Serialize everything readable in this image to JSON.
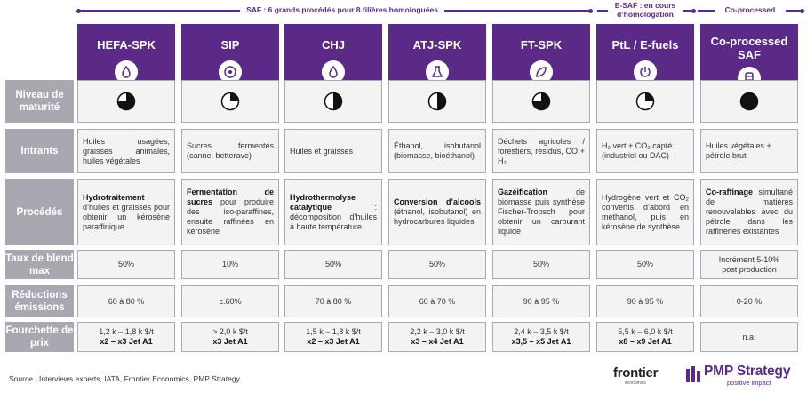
{
  "sections": {
    "saf": "SAF : 6 grands procédés pour 8 filières homologuées",
    "esaf": "E-SAF : en cours d’homologation",
    "coprocessed": "Co-processed"
  },
  "columns": [
    {
      "title": "HEFA-SPK",
      "icon": "oil-drop-icon"
    },
    {
      "title": "SIP",
      "icon": "sugar-icon"
    },
    {
      "title": "CHJ",
      "icon": "oil-drop-icon"
    },
    {
      "title": "ATJ-SPK",
      "icon": "beaker-icon"
    },
    {
      "title": "FT-SPK",
      "icon": "leaf-icon"
    },
    {
      "title": "PtL / E-fuels",
      "icon": "power-icon"
    },
    {
      "title": "Co-processed SAF",
      "icon": "barrel-icon"
    }
  ],
  "rows": {
    "maturite": "Niveau de maturité",
    "intrants": "Intrants",
    "procedes": "Procédés",
    "blend": "Taux de blend max",
    "reductions": "Réductions émissions",
    "prix": "Fourchette de prix"
  },
  "maturity": [
    0.75,
    0.25,
    0.5,
    0.5,
    0.75,
    0.25,
    1.0
  ],
  "intrants": [
    "Huiles usagées, graisses animales, huiles végétales",
    "Sucres fermentés (canne, betterave)",
    "Huiles et graisses",
    "Éthanol, isobutanol (biomasse, bioéthanol)",
    "Déchets agricoles / forestiers, résidus, CO + H₂",
    "H₂ vert + CO₂ capté (industriel ou DAC)",
    "Huiles végétales + pétrole brut"
  ],
  "procedes": [
    {
      "bold": "Hydrotraitement",
      "rest": " d’huiles et graisses pour obtenir un kérosène paraffinique"
    },
    {
      "bold": "Fermentation de sucres",
      "rest": " pour produire des iso-paraffines, ensuite raffinées en kérosène"
    },
    {
      "bold": "Hydrothermolyse catalytique",
      "rest": " : décomposition d’huiles à haute température"
    },
    {
      "bold": "Conversion d’alcools",
      "rest": " (éthanol, isobutanol) en hydrocarbures liquides"
    },
    {
      "bold": "Gazéification",
      "rest": " de biomasse puis synthèse Fischer-Tropsch pour obtenir un carburant liquide"
    },
    {
      "bold": "",
      "rest": "Hydrogène vert et CO₂ convertis d’abord en méthanol, puis en kérosène de synthèse"
    },
    {
      "bold": "Co-raffinage",
      "rest": " simultané de matières renouvelables avec du pétrole dans les raffineries existantes"
    }
  ],
  "blend": [
    "50%",
    "10%",
    "50%",
    "50%",
    "50%",
    "50%",
    "Incrément 5-10% post production"
  ],
  "reductions": [
    "60 à 80 %",
    "c.60%",
    "70 à 80 %",
    "60 à 70 %",
    "90 à 95 %",
    "90 à 95 %",
    "0-20 %"
  ],
  "prix": [
    {
      "range": "1,2 k – 1,8 k $/t",
      "ratio": "x2 – x3 Jet A1"
    },
    {
      "range": "> 2,0 k $/t",
      "ratio": "x3 Jet A1"
    },
    {
      "range": "1,5 k – 1,8 k $/t",
      "ratio": "x2 – x3 Jet A1"
    },
    {
      "range": "2,2 k – 3,0 k $/t",
      "ratio": "x3 – x4 Jet A1"
    },
    {
      "range": "2,4 k – 3,5 k $/t",
      "ratio": "x3,5 – x5 Jet A1"
    },
    {
      "range": "5,5 k – 6,0 k $/t",
      "ratio": "x8 – x9 Jet A1"
    },
    {
      "range": "n.a.",
      "ratio": ""
    }
  ],
  "footer": {
    "source": "Source : Interviews experts, IATA, Frontier Economics, PMP Strategy",
    "frontier": "frontier",
    "frontier_sub": "economics",
    "pmp": "PMP Strategy",
    "pmp_sub": "positive impact"
  },
  "colors": {
    "accent": "#5b2a86",
    "row_label": "#a8a8b0",
    "cell_bg": "#f3f3f4"
  }
}
